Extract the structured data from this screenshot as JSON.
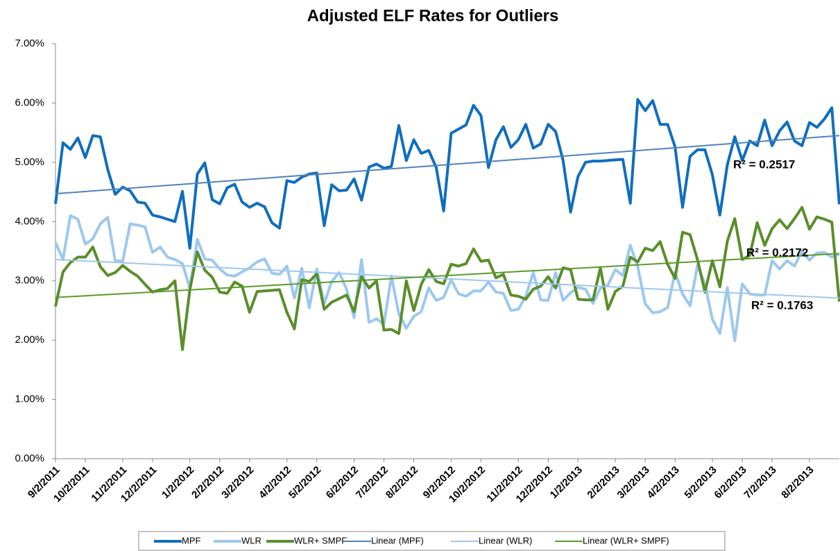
{
  "chart_data": {
    "type": "line",
    "title": "Adjusted ELF Rates for Outliers",
    "categories": [
      "9/2/2011",
      null,
      null,
      null,
      "10/2/2011",
      null,
      null,
      null,
      null,
      "11/2/2011",
      null,
      null,
      null,
      "12/2/2011",
      null,
      null,
      null,
      null,
      "1/2/2012",
      null,
      null,
      null,
      "2/2/2012",
      null,
      null,
      null,
      "3/2/2012",
      null,
      null,
      null,
      null,
      "4/2/2012",
      null,
      null,
      null,
      "5/2/2012",
      null,
      null,
      null,
      null,
      "6/2/2012",
      null,
      null,
      null,
      "7/2/2012",
      null,
      null,
      null,
      "8/2/2012",
      null,
      null,
      null,
      null,
      "9/2/2012",
      null,
      null,
      null,
      "10/2/2012",
      null,
      null,
      null,
      null,
      "11/2/2012",
      null,
      null,
      null,
      "12/2/2012",
      null,
      null,
      null,
      "1/2/2013",
      null,
      null,
      null,
      null,
      "2/2/2013",
      null,
      null,
      null,
      "3/2/2013",
      null,
      null,
      null,
      "4/2/2013",
      null,
      null,
      null,
      null,
      "5/2/2013",
      null,
      null,
      null,
      "6/2/2013",
      null,
      null,
      null,
      "7/2/2013",
      null,
      null,
      null,
      null,
      "8/2/2013",
      null,
      null,
      null,
      null
    ],
    "series": [
      {
        "name": "MPF",
        "color": "#0F6EBE",
        "values": [
          4.3,
          5.33,
          5.22,
          5.41,
          5.08,
          5.45,
          5.43,
          4.88,
          4.46,
          4.58,
          4.52,
          4.33,
          4.31,
          4.11,
          4.08,
          4.04,
          4.0,
          4.51,
          3.55,
          4.8,
          4.99,
          4.37,
          4.3,
          4.57,
          4.63,
          4.33,
          4.24,
          4.31,
          4.25,
          3.98,
          3.89,
          4.69,
          4.66,
          4.75,
          4.8,
          4.82,
          3.93,
          4.62,
          4.52,
          4.53,
          4.72,
          4.36,
          4.92,
          4.97,
          4.9,
          4.93,
          5.62,
          5.03,
          5.38,
          5.15,
          5.2,
          4.91,
          4.18,
          5.49,
          5.56,
          5.63,
          5.96,
          5.79,
          4.91,
          5.38,
          5.6,
          5.25,
          5.38,
          5.64,
          5.24,
          5.31,
          5.64,
          5.52,
          5.03,
          4.16,
          4.76,
          5.0,
          5.02,
          5.02,
          5.03,
          5.04,
          5.05,
          4.31,
          6.06,
          5.87,
          6.04,
          5.64,
          5.64,
          5.26,
          4.24,
          5.1,
          5.21,
          5.21,
          4.79,
          4.11,
          4.96,
          5.43,
          5.03,
          5.36,
          5.28,
          5.71,
          5.28,
          5.53,
          5.68,
          5.36,
          5.28,
          5.67,
          5.59,
          5.73,
          5.92,
          4.29
        ]
      },
      {
        "name": "WLR",
        "color": "#9DC8EE",
        "values": [
          3.65,
          3.36,
          4.1,
          4.04,
          3.62,
          3.71,
          3.96,
          4.07,
          3.34,
          3.33,
          3.96,
          3.94,
          3.91,
          3.48,
          3.57,
          3.4,
          3.36,
          3.29,
          2.88,
          3.7,
          3.37,
          3.35,
          3.2,
          3.1,
          3.08,
          3.15,
          3.22,
          3.32,
          3.37,
          3.13,
          3.11,
          3.25,
          2.71,
          3.21,
          2.55,
          3.2,
          2.62,
          2.99,
          3.14,
          2.86,
          2.38,
          3.36,
          2.3,
          2.36,
          2.27,
          3.08,
          2.44,
          2.2,
          2.4,
          2.48,
          2.88,
          2.67,
          2.72,
          3.02,
          2.78,
          2.74,
          2.83,
          2.83,
          2.98,
          2.81,
          2.79,
          2.5,
          2.52,
          2.74,
          3.14,
          2.68,
          2.67,
          3.14,
          2.67,
          2.8,
          2.89,
          2.86,
          2.62,
          2.88,
          2.93,
          3.19,
          3.09,
          3.6,
          3.24,
          2.61,
          2.46,
          2.48,
          2.55,
          3.15,
          2.78,
          2.58,
          3.26,
          2.95,
          2.35,
          2.11,
          2.89,
          1.99,
          2.95,
          2.78,
          2.76,
          2.76,
          3.34,
          3.2,
          3.34,
          3.25,
          3.5,
          3.35,
          3.47,
          3.48,
          3.4,
          3.45
        ]
      },
      {
        "name": "WLR+ SMPF",
        "color": "#5A8E2B",
        "values": [
          2.57,
          3.15,
          3.31,
          3.4,
          3.4,
          3.57,
          3.24,
          3.09,
          3.14,
          3.26,
          3.16,
          3.08,
          2.94,
          2.81,
          2.85,
          2.87,
          3.0,
          1.84,
          2.85,
          3.49,
          3.18,
          3.06,
          2.81,
          2.79,
          2.98,
          2.91,
          2.47,
          2.82,
          2.83,
          2.84,
          2.85,
          2.47,
          2.19,
          3.02,
          2.99,
          3.12,
          2.52,
          2.64,
          2.7,
          2.76,
          2.48,
          3.07,
          2.88,
          3.0,
          2.17,
          2.18,
          2.11,
          3.0,
          2.5,
          2.94,
          3.19,
          2.99,
          2.95,
          3.28,
          3.25,
          3.29,
          3.54,
          3.33,
          3.35,
          3.05,
          3.11,
          2.76,
          2.74,
          2.69,
          2.86,
          2.91,
          3.07,
          2.88,
          3.22,
          3.19,
          2.69,
          2.68,
          2.68,
          3.22,
          2.52,
          2.82,
          2.91,
          3.4,
          3.32,
          3.55,
          3.51,
          3.66,
          3.28,
          3.04,
          3.82,
          3.78,
          3.36,
          2.81,
          3.34,
          2.9,
          3.67,
          4.05,
          3.36,
          3.43,
          3.98,
          3.6,
          3.88,
          4.03,
          3.88,
          4.05,
          4.24,
          3.87,
          4.08,
          4.04,
          3.99,
          2.65
        ]
      }
    ],
    "trendlines": [
      {
        "name": "Linear (MPF)",
        "color": "#4F81BD",
        "start": 4.47,
        "end": 5.45,
        "label": "R² = 0.2517"
      },
      {
        "name": "Linear (WLR)",
        "color": "#9DC8EE",
        "start": 3.36,
        "end": 2.71,
        "label": "R² = 0.1763"
      },
      {
        "name": "Linear (WLR+ SMPF)",
        "color": "#5A9A2A",
        "start": 2.72,
        "end": 3.46,
        "label": "R² = 0.2172"
      }
    ],
    "ylim": [
      0,
      7
    ],
    "yticks": [
      {
        "value": 0,
        "label": "0.00%"
      },
      {
        "value": 1,
        "label": "1.00%"
      },
      {
        "value": 2,
        "label": "2.00%"
      },
      {
        "value": 3,
        "label": "3.00%"
      },
      {
        "value": 4,
        "label": "4.00%"
      },
      {
        "value": 5,
        "label": "5.00%"
      },
      {
        "value": 6,
        "label": "6.00%"
      },
      {
        "value": 7,
        "label": "7.00%"
      }
    ],
    "legend": "bottom"
  }
}
